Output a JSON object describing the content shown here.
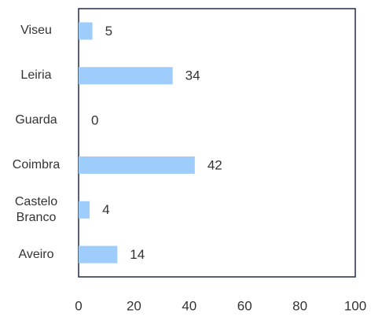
{
  "chart_data": {
    "type": "barh",
    "categories": [
      "Viseu",
      "Leiria",
      "Guarda",
      "Coimbra",
      "Castelo Branco",
      "Aveiro"
    ],
    "values": [
      5,
      34,
      0,
      42,
      4,
      14
    ],
    "color": "#9fcdfb",
    "xlim": [
      0,
      100
    ],
    "xticks": [
      0,
      20,
      40,
      60,
      80,
      100
    ],
    "grid": false
  }
}
